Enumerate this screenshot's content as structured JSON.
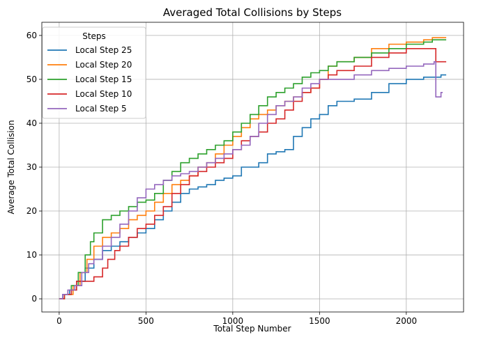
{
  "chart_data": {
    "type": "line",
    "title": "Averaged Total Collisions by Steps",
    "xlabel": "Total Step Number",
    "ylabel": "Average Total Collision",
    "xlim": [
      -100,
      2330
    ],
    "ylim": [
      -3,
      63
    ],
    "x_ticks": [
      0,
      500,
      1000,
      1500,
      2000
    ],
    "y_ticks": [
      0,
      10,
      20,
      30,
      40,
      50,
      60
    ],
    "grid": true,
    "legend": {
      "title": "Steps",
      "position": "top-left"
    },
    "series": [
      {
        "name": "Local Step 25",
        "color": "#1f77b4",
        "points": [
          [
            0,
            0
          ],
          [
            20,
            1
          ],
          [
            60,
            2
          ],
          [
            100,
            4
          ],
          [
            150,
            7
          ],
          [
            200,
            9
          ],
          [
            250,
            11
          ],
          [
            300,
            12
          ],
          [
            350,
            13
          ],
          [
            400,
            14
          ],
          [
            450,
            15
          ],
          [
            500,
            16
          ],
          [
            550,
            18
          ],
          [
            600,
            20
          ],
          [
            650,
            22
          ],
          [
            700,
            24
          ],
          [
            750,
            25
          ],
          [
            800,
            25.5
          ],
          [
            850,
            26
          ],
          [
            900,
            27
          ],
          [
            950,
            27.5
          ],
          [
            1000,
            28
          ],
          [
            1050,
            30
          ],
          [
            1100,
            30
          ],
          [
            1150,
            31
          ],
          [
            1200,
            33
          ],
          [
            1250,
            33.5
          ],
          [
            1300,
            34
          ],
          [
            1350,
            37
          ],
          [
            1400,
            39
          ],
          [
            1450,
            41
          ],
          [
            1500,
            42
          ],
          [
            1550,
            44
          ],
          [
            1600,
            45
          ],
          [
            1700,
            45.5
          ],
          [
            1800,
            47
          ],
          [
            1900,
            49
          ],
          [
            2000,
            50
          ],
          [
            2100,
            50.5
          ],
          [
            2200,
            51
          ],
          [
            2230,
            51
          ]
        ]
      },
      {
        "name": "Local Step 20",
        "color": "#ff7f0e",
        "points": [
          [
            0,
            0
          ],
          [
            30,
            1
          ],
          [
            80,
            3
          ],
          [
            120,
            6
          ],
          [
            160,
            9
          ],
          [
            200,
            12
          ],
          [
            250,
            14
          ],
          [
            300,
            15
          ],
          [
            350,
            16
          ],
          [
            400,
            18
          ],
          [
            450,
            19
          ],
          [
            500,
            20
          ],
          [
            550,
            22
          ],
          [
            600,
            24
          ],
          [
            650,
            26
          ],
          [
            700,
            27
          ],
          [
            750,
            28
          ],
          [
            800,
            30
          ],
          [
            850,
            31
          ],
          [
            900,
            33
          ],
          [
            950,
            35
          ],
          [
            1000,
            37
          ],
          [
            1050,
            39
          ],
          [
            1100,
            41
          ],
          [
            1150,
            42
          ],
          [
            1200,
            43
          ],
          [
            1250,
            44
          ],
          [
            1300,
            45
          ],
          [
            1350,
            46
          ],
          [
            1400,
            47
          ],
          [
            1450,
            48
          ],
          [
            1500,
            50
          ],
          [
            1550,
            53
          ],
          [
            1600,
            54
          ],
          [
            1700,
            55
          ],
          [
            1800,
            57
          ],
          [
            1900,
            58
          ],
          [
            2000,
            58.5
          ],
          [
            2100,
            59
          ],
          [
            2150,
            59.5
          ],
          [
            2230,
            59.5
          ]
        ]
      },
      {
        "name": "Local Step 15",
        "color": "#2ca02c",
        "points": [
          [
            0,
            0
          ],
          [
            30,
            1
          ],
          [
            70,
            3
          ],
          [
            110,
            6
          ],
          [
            150,
            10
          ],
          [
            180,
            13
          ],
          [
            200,
            15
          ],
          [
            250,
            18
          ],
          [
            300,
            19
          ],
          [
            350,
            20
          ],
          [
            400,
            21
          ],
          [
            450,
            22
          ],
          [
            500,
            22.5
          ],
          [
            550,
            24
          ],
          [
            600,
            27
          ],
          [
            650,
            29
          ],
          [
            700,
            31
          ],
          [
            750,
            32
          ],
          [
            800,
            33
          ],
          [
            850,
            34
          ],
          [
            900,
            35
          ],
          [
            950,
            36
          ],
          [
            1000,
            38
          ],
          [
            1050,
            40
          ],
          [
            1100,
            42
          ],
          [
            1150,
            44
          ],
          [
            1200,
            46
          ],
          [
            1250,
            47
          ],
          [
            1300,
            48
          ],
          [
            1350,
            49
          ],
          [
            1400,
            50.5
          ],
          [
            1450,
            51.5
          ],
          [
            1500,
            52
          ],
          [
            1550,
            53
          ],
          [
            1600,
            54
          ],
          [
            1700,
            55
          ],
          [
            1800,
            56
          ],
          [
            1900,
            57
          ],
          [
            2000,
            58
          ],
          [
            2100,
            58.5
          ],
          [
            2150,
            59
          ],
          [
            2230,
            59
          ]
        ]
      },
      {
        "name": "Local Step 10",
        "color": "#d62728",
        "points": [
          [
            0,
            0
          ],
          [
            30,
            1
          ],
          [
            70,
            2
          ],
          [
            100,
            4
          ],
          [
            150,
            4
          ],
          [
            200,
            5
          ],
          [
            250,
            7
          ],
          [
            280,
            9
          ],
          [
            320,
            11
          ],
          [
            350,
            12
          ],
          [
            400,
            14
          ],
          [
            450,
            16
          ],
          [
            500,
            17
          ],
          [
            550,
            19
          ],
          [
            600,
            21
          ],
          [
            650,
            24
          ],
          [
            700,
            26
          ],
          [
            750,
            28
          ],
          [
            800,
            29
          ],
          [
            850,
            30
          ],
          [
            900,
            31
          ],
          [
            950,
            32
          ],
          [
            1000,
            34
          ],
          [
            1050,
            36
          ],
          [
            1100,
            37
          ],
          [
            1150,
            38
          ],
          [
            1200,
            40
          ],
          [
            1250,
            41
          ],
          [
            1300,
            43
          ],
          [
            1350,
            45
          ],
          [
            1400,
            47
          ],
          [
            1450,
            48
          ],
          [
            1500,
            50
          ],
          [
            1550,
            51
          ],
          [
            1600,
            52
          ],
          [
            1700,
            53
          ],
          [
            1800,
            55
          ],
          [
            1900,
            56
          ],
          [
            2000,
            57
          ],
          [
            2100,
            57
          ],
          [
            2160,
            57
          ],
          [
            2170,
            54
          ],
          [
            2230,
            54
          ]
        ]
      },
      {
        "name": "Local Step 5",
        "color": "#9467bd",
        "points": [
          [
            0,
            0
          ],
          [
            20,
            1
          ],
          [
            50,
            2
          ],
          [
            90,
            3
          ],
          [
            130,
            6
          ],
          [
            170,
            8
          ],
          [
            200,
            9
          ],
          [
            250,
            12
          ],
          [
            300,
            14
          ],
          [
            350,
            17
          ],
          [
            400,
            20
          ],
          [
            450,
            23
          ],
          [
            500,
            25
          ],
          [
            550,
            26
          ],
          [
            600,
            27
          ],
          [
            650,
            28
          ],
          [
            700,
            28.5
          ],
          [
            750,
            29
          ],
          [
            800,
            30
          ],
          [
            850,
            31
          ],
          [
            900,
            32
          ],
          [
            950,
            33
          ],
          [
            1000,
            34
          ],
          [
            1050,
            35
          ],
          [
            1100,
            37
          ],
          [
            1150,
            40
          ],
          [
            1200,
            42
          ],
          [
            1250,
            44
          ],
          [
            1300,
            45
          ],
          [
            1350,
            46
          ],
          [
            1400,
            48
          ],
          [
            1450,
            49
          ],
          [
            1500,
            50
          ],
          [
            1600,
            50
          ],
          [
            1700,
            51
          ],
          [
            1800,
            52
          ],
          [
            1900,
            52.5
          ],
          [
            2000,
            53
          ],
          [
            2100,
            53.5
          ],
          [
            2160,
            54
          ],
          [
            2170,
            46
          ],
          [
            2200,
            47
          ],
          [
            2210,
            47
          ]
        ]
      }
    ]
  }
}
